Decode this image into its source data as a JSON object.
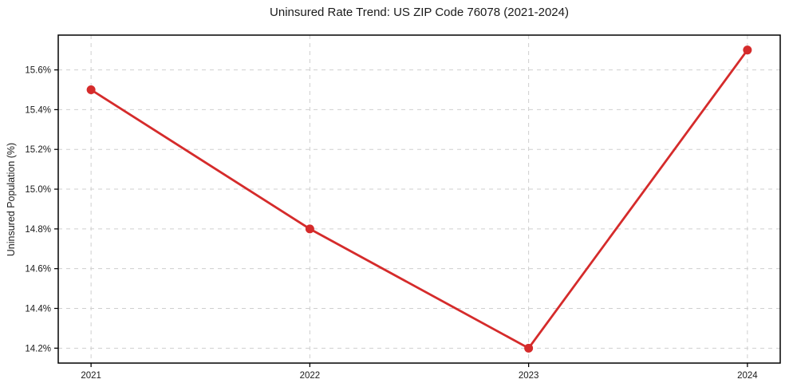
{
  "chart_data": {
    "type": "line",
    "title": "Uninsured Rate Trend: US ZIP Code 76078 (2021-2024)",
    "xlabel": "",
    "ylabel": "Uninsured Population (%)",
    "x": [
      2021,
      2022,
      2023,
      2024
    ],
    "x_tick_labels": [
      "2021",
      "2022",
      "2023",
      "2024"
    ],
    "series": [
      {
        "name": "uninsured-rate",
        "values": [
          15.5,
          14.8,
          14.2,
          15.7
        ]
      }
    ],
    "y_ticks": [
      14.2,
      14.4,
      14.6,
      14.8,
      15.0,
      15.2,
      15.4,
      15.6
    ],
    "y_tick_labels": [
      "14.2%",
      "14.4%",
      "14.6%",
      "14.8%",
      "15.0%",
      "15.2%",
      "15.4%",
      "15.6%"
    ],
    "xlim": [
      2020.85,
      2024.15
    ],
    "ylim": [
      14.125,
      15.775
    ],
    "grid": true,
    "legend_position": "none",
    "line_color": "#d52b2b",
    "marker_color": "#d52b2b",
    "marker_style": "circle",
    "grid_color": "#cfcfcf",
    "axis_color": "#000000",
    "text_color": "#1a1a1a",
    "background_color": "#ffffff"
  }
}
